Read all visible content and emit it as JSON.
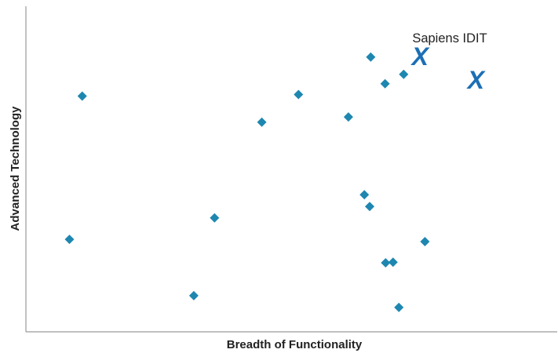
{
  "chart_data": {
    "type": "scatter",
    "xlabel": "Breadth of Functionality",
    "ylabel": "Advanced Technology",
    "xlim": [
      0,
      100
    ],
    "ylim": [
      0,
      100
    ],
    "grid": false,
    "colors": {
      "marker": "#1E87B0",
      "highlight": "#1C6FB5",
      "axis": "#9A9A9A"
    },
    "points": [
      {
        "x": 10.6,
        "y": 72.4
      },
      {
        "x": 8.2,
        "y": 28.4
      },
      {
        "x": 31.6,
        "y": 11.1
      },
      {
        "x": 35.5,
        "y": 35.0
      },
      {
        "x": 44.4,
        "y": 64.4
      },
      {
        "x": 51.3,
        "y": 72.9
      },
      {
        "x": 60.7,
        "y": 66.0
      },
      {
        "x": 63.7,
        "y": 42.1
      },
      {
        "x": 64.7,
        "y": 38.5
      },
      {
        "x": 64.9,
        "y": 84.4
      },
      {
        "x": 67.6,
        "y": 76.2
      },
      {
        "x": 67.7,
        "y": 21.2
      },
      {
        "x": 69.1,
        "y": 21.4
      },
      {
        "x": 70.2,
        "y": 7.5
      },
      {
        "x": 71.1,
        "y": 79.1
      },
      {
        "x": 75.1,
        "y": 27.7
      }
    ],
    "highlighted": [
      {
        "x": 74.2,
        "y": 84.6,
        "marker": "X",
        "label": "Sapiens IDIT"
      },
      {
        "x": 84.7,
        "y": 77.4,
        "marker": "X",
        "label": ""
      }
    ]
  }
}
